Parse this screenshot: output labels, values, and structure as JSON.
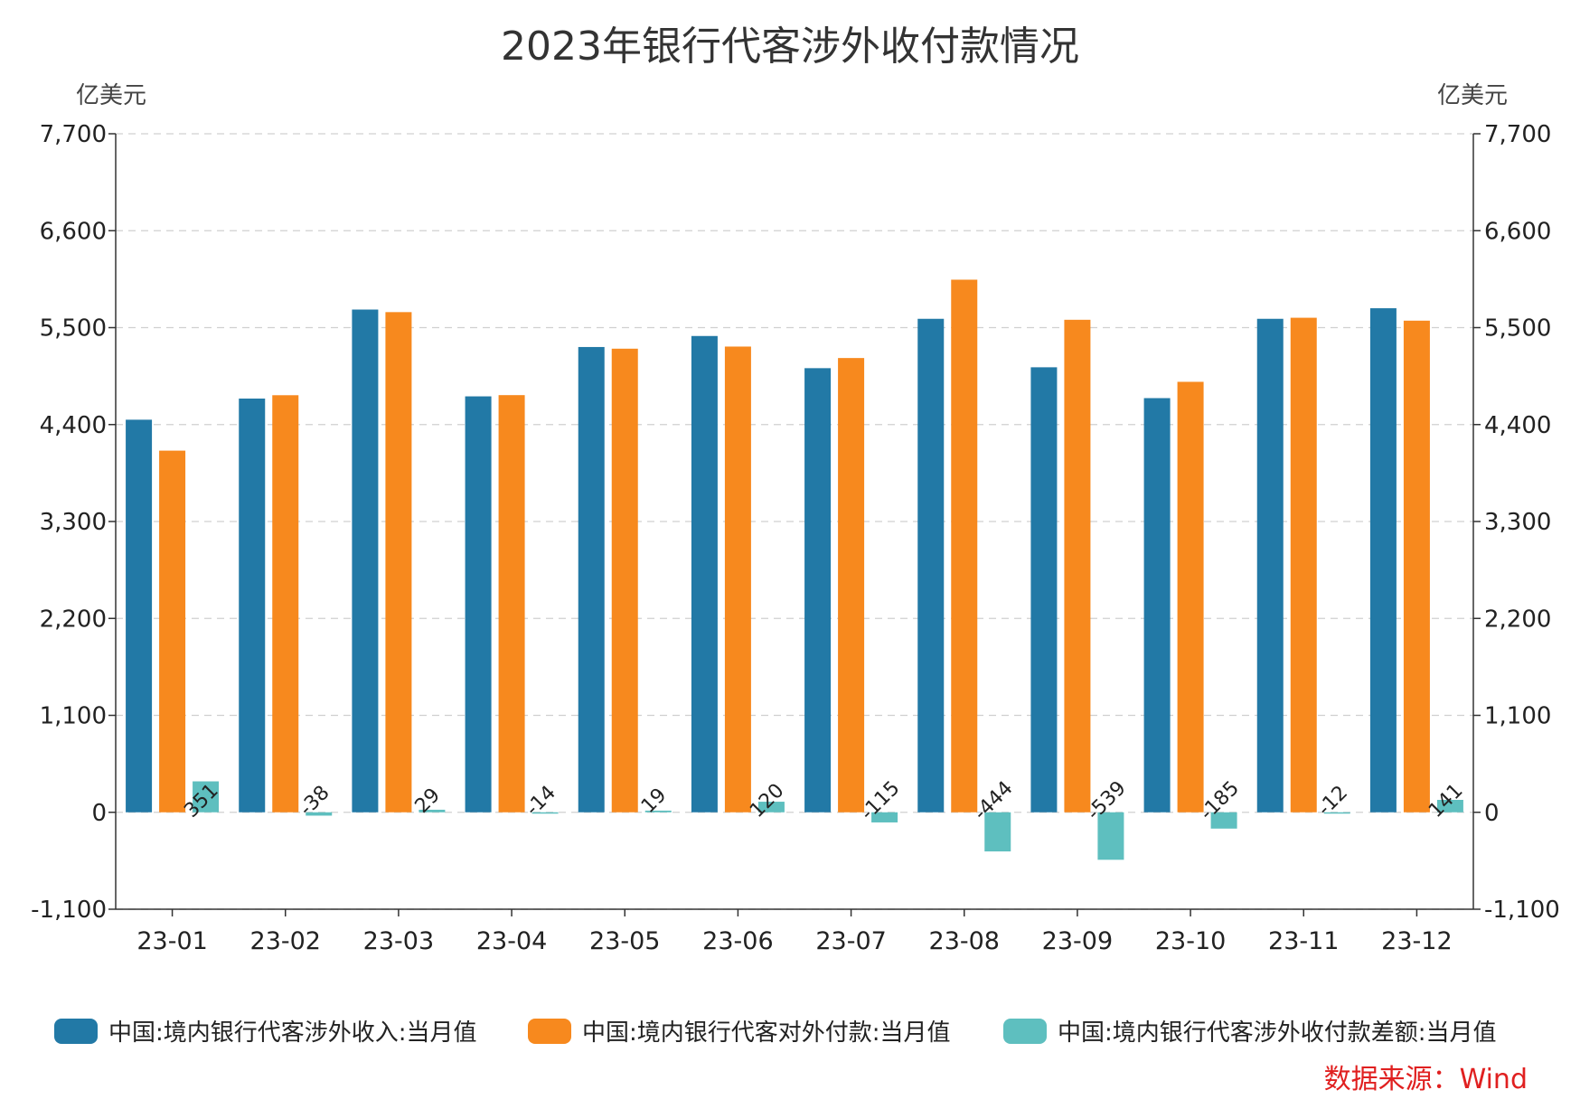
{
  "chart_data": {
    "type": "bar",
    "title": "2023年银行代客涉外收付款情况",
    "y_unit_left": "亿美元",
    "y_unit_right": "亿美元",
    "ylim": [
      -1100,
      7700
    ],
    "yticks": [
      -1100,
      0,
      1100,
      2200,
      3300,
      4400,
      5500,
      6600,
      7700
    ],
    "ytick_labels": [
      "-1,100",
      "0",
      "1,100",
      "2,200",
      "3,300",
      "4,400",
      "5,500",
      "6,600",
      "7,700"
    ],
    "grid": true,
    "categories": [
      "23-01",
      "23-02",
      "23-03",
      "23-04",
      "23-05",
      "23-06",
      "23-07",
      "23-08",
      "23-09",
      "23-10",
      "23-11",
      "23-12"
    ],
    "series": [
      {
        "name": "中国:境内银行代客涉外收入:当月值",
        "color": "#2279a6",
        "values": [
          4455,
          4695,
          5705,
          4720,
          5280,
          5405,
          5040,
          5600,
          5050,
          4700,
          5600,
          5720
        ]
      },
      {
        "name": "中国:境内银行代客对外付款:当月值",
        "color": "#f7891e",
        "values": [
          4104,
          4733,
          5676,
          4734,
          5261,
          5285,
          5155,
          6044,
          5589,
          4885,
          5612,
          5579
        ]
      },
      {
        "name": "中国:境内银行代客涉外收付款差额:当月值",
        "color": "#5ebfbf",
        "values": [
          351,
          -38,
          29,
          -14,
          19,
          120,
          -115,
          -444,
          -539,
          -185,
          -12,
          141
        ],
        "data_labels": [
          "351",
          "-38",
          "29",
          "-14",
          "19",
          "120",
          "-115",
          "-444",
          "-539",
          "-185",
          "-12",
          "141"
        ]
      }
    ],
    "legend_position": "bottom",
    "source": "数据来源：Wind"
  }
}
